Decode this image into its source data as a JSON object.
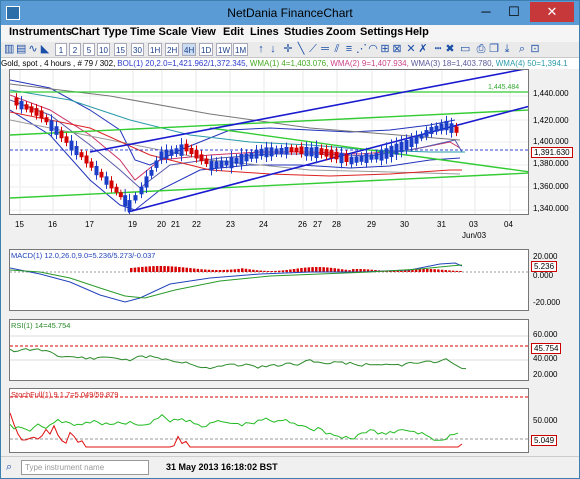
{
  "window": {
    "title": "NetDania FinanceChart",
    "minimize": "─",
    "maximize": "☐",
    "close": "✕"
  },
  "menu": [
    "Instruments",
    "Chart Type",
    "Time Scale",
    "View",
    "Edit",
    "Lines",
    "Studies",
    "Zoom",
    "Settings",
    "Help"
  ],
  "toolbar": {
    "timeframes": [
      "1",
      "2",
      "5",
      "10",
      "15",
      "30",
      "1H",
      "2H",
      "4H",
      "1D",
      "1W",
      "1M"
    ],
    "selected": "4H"
  },
  "info": {
    "instrument": "Gold, spot , 4 hours , # 79 / 302,",
    "bol": "BOL(1) 20,2.0=1,421.962/1,372.345,",
    "wma1": "WMA(1) 4=1,403.076,",
    "wma2": "WMA(2) 9=1,407.934,",
    "wma3": "WMA(3) 18=1,403.780,",
    "wma4": "WMA(4) 50=1,394.1"
  },
  "main": {
    "y_labels": [
      "1,440.000",
      "1,420.000",
      "1,400.000",
      "1,380.000",
      "1,360.000",
      "1,340.000"
    ],
    "current_price": "1,391.630",
    "level_label": "1,445.484",
    "x_labels": [
      "15",
      "16",
      "17",
      "19",
      "20",
      "21",
      "22",
      "23",
      "24",
      "26",
      "27",
      "28",
      "29",
      "30",
      "31",
      "03",
      "04"
    ],
    "x_month": "Jun/03"
  },
  "macd": {
    "label": "MACD(1) 12.0,26.0,9.0=5.236/5.273/-0.037",
    "y_labels": [
      "20.000",
      "0.000",
      "-20.000"
    ],
    "current": "5.236"
  },
  "rsi": {
    "label": "RSI(1) 14=45.754",
    "y_labels": [
      "60.000",
      "40.000",
      "20.000"
    ],
    "current": "45.754"
  },
  "stoch": {
    "label": "StochFull(1) 9,1,7=5.049/59.879",
    "y_labels": [
      "50.000"
    ],
    "current": "5.049"
  },
  "status": {
    "search_placeholder": "Type instrument name",
    "datetime": "31 May 2013 16:18:02 BST"
  },
  "colors": {
    "up": "#1a3ec8",
    "down": "#d40000",
    "trend_blue": "#1a1ad0",
    "trend_green": "#2ecc2e"
  }
}
